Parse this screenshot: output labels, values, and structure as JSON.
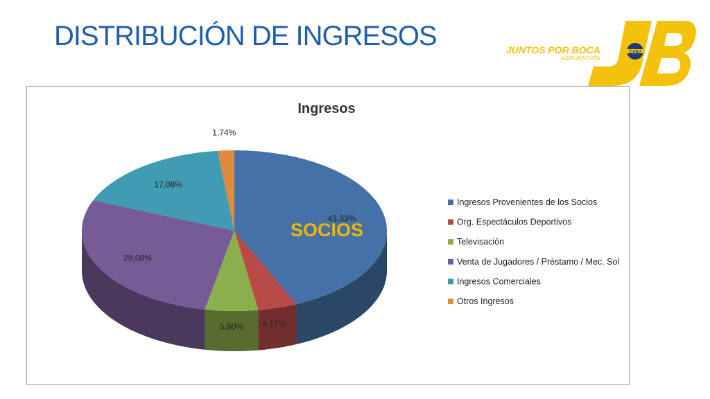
{
  "slide": {
    "title": "DISTRIBUCIÓN DE INGRESOS"
  },
  "logo": {
    "line1": "JUNTOS POR BOCA",
    "line2": "AGRUPACIÓN",
    "monogram": "JB",
    "badge": "CABJ",
    "color": "#f4c20d"
  },
  "annotation": {
    "text": "SOCIOS",
    "color": "#f4b400"
  },
  "chart_data": {
    "type": "pie",
    "style": "3d",
    "title": "Ingresos",
    "legend_position": "right",
    "slices": [
      {
        "label": "Ingresos Provenientes de los Socios",
        "value": 43.33,
        "value_label": "43,33%",
        "color": "#4472a8"
      },
      {
        "label": "Org. Espectáculos Deportivos",
        "value": 4.17,
        "value_label": "4,17%",
        "color": "#b84a47"
      },
      {
        "label": "Televisación",
        "value": 5.6,
        "value_label": "5,60%",
        "color": "#8caf4d"
      },
      {
        "label": "Venta de Jugadores / Préstamo / Mec. Sol",
        "value": 28.08,
        "value_label": "28,08%",
        "color": "#775b96"
      },
      {
        "label": "Ingresos Comerciales",
        "value": 17.08,
        "value_label": "17,08%",
        "color": "#3f9cb3"
      },
      {
        "label": "Otros Ingresos",
        "value": 1.74,
        "value_label": "1,74%",
        "color": "#e08a3c"
      }
    ]
  }
}
